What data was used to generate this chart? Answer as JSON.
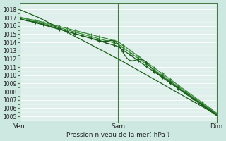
{
  "xlabel": "Pression niveau de la mer( hPa )",
  "ylim": [
    1004.5,
    1018.8
  ],
  "yticks": [
    1005,
    1006,
    1007,
    1008,
    1009,
    1010,
    1011,
    1012,
    1013,
    1014,
    1015,
    1016,
    1017,
    1018
  ],
  "xtick_labels": [
    "Ven",
    "Sam",
    "Dim"
  ],
  "xtick_positions": [
    0,
    0.5,
    1.0
  ],
  "background_color": "#cce8e0",
  "plot_bg_color": "#dff0ec",
  "grid_color": "#ffffff",
  "dark_green": "#1a5c1a",
  "light_green": "#3a8a3a",
  "n_points": 200
}
